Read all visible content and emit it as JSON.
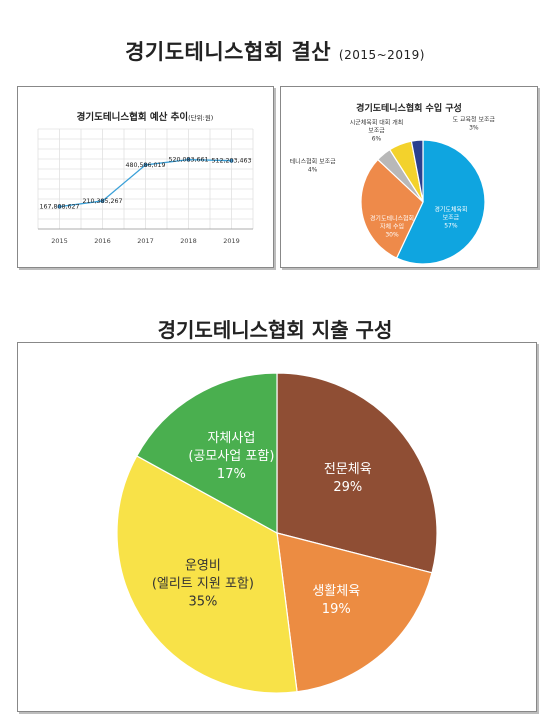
{
  "page": {
    "title": "경기도테니스협회 결산",
    "title_suffix": "(2015~2019)",
    "expense_title": "경기도테니스협회 지출 구성"
  },
  "chart_data": [
    {
      "type": "line",
      "title": "경기도테니스협회 예산 추이",
      "unit_label": "(단위:원)",
      "categories": [
        "2015",
        "2016",
        "2017",
        "2018",
        "2019"
      ],
      "series": [
        {
          "values": [
            167808627,
            210385267,
            480586019,
            520083661,
            512203463
          ]
        }
      ],
      "value_labels": [
        "167,808,627",
        "210,385,267",
        "480,586,019",
        "520,083,661",
        "512,203,463"
      ],
      "ylim": [
        0,
        750000000
      ],
      "grid": true,
      "colors": {
        "line": "#3aa0d8",
        "marker": "#3a8fc8"
      }
    },
    {
      "type": "pie",
      "title": "경기도테니스협회 수입 구성",
      "slices": [
        {
          "label_lines": [
            "경기도체육회",
            "보조금"
          ],
          "value": 57,
          "pct": "57%",
          "color": "#0fa5e0"
        },
        {
          "label_lines": [
            "경기도테니스협회",
            "자체 수입"
          ],
          "value": 30,
          "pct": "30%",
          "color": "#ee8a4a"
        },
        {
          "label_lines": [
            "테니스협회 보조금"
          ],
          "value": 4,
          "pct": "4%",
          "color": "#b8b8b8"
        },
        {
          "label_lines": [
            "시군체육회 대회 개최",
            "보조금"
          ],
          "value": 6,
          "pct": "6%",
          "color": "#f3d22c"
        },
        {
          "label_lines": [
            "도 교육청 보조금"
          ],
          "value": 3,
          "pct": "3%",
          "color": "#2a3f8f"
        }
      ]
    },
    {
      "type": "pie",
      "title": "경기도테니스협회 지출 구성",
      "slices": [
        {
          "label_lines": [
            "전문체육"
          ],
          "value": 29,
          "pct": "29%",
          "color": "#8f4e34"
        },
        {
          "label_lines": [
            "생활체육"
          ],
          "value": 19,
          "pct": "19%",
          "color": "#ec8c42"
        },
        {
          "label_lines": [
            "운영비",
            "(엘리트 지원 포함)"
          ],
          "value": 35,
          "pct": "35%",
          "color": "#f8e248"
        },
        {
          "label_lines": [
            "자체사업",
            "(공모사업 포함)"
          ],
          "value": 17,
          "pct": "17%",
          "color": "#4aaf4f"
        }
      ]
    }
  ]
}
